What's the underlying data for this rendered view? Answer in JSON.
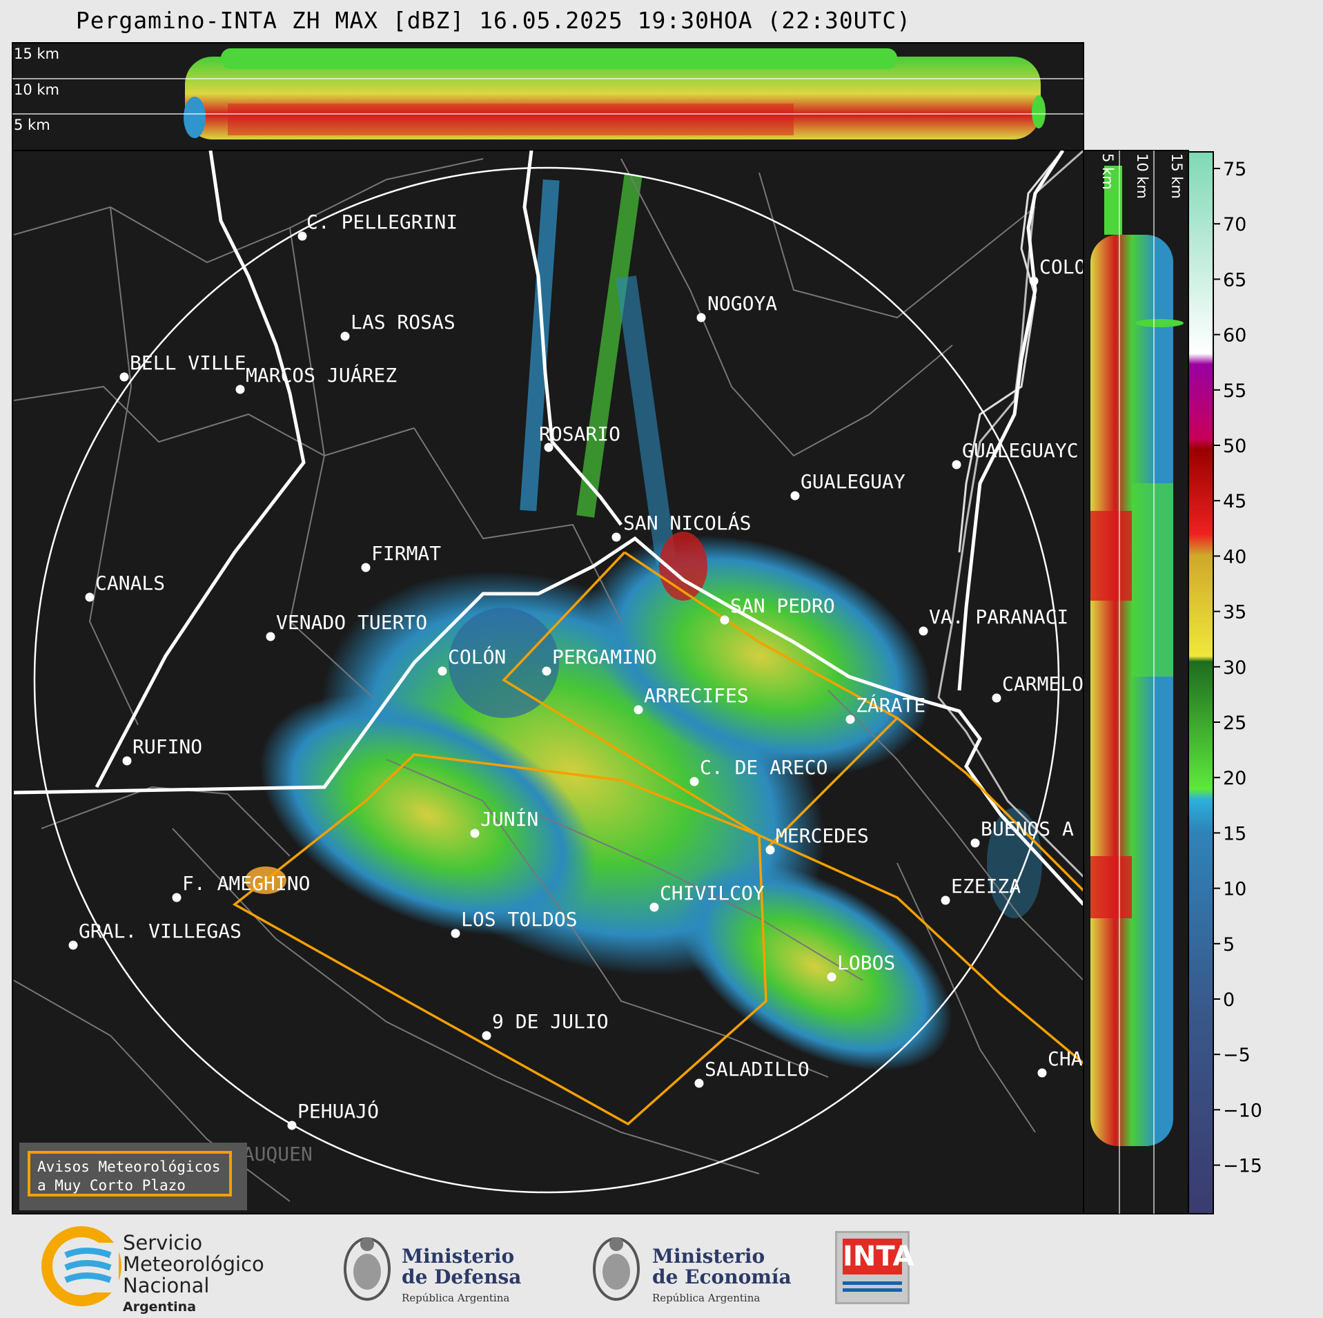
{
  "title": "Pergamino-INTA ZH MAX [dBZ] 16.05.2025 19:30HOA (22:30UTC)",
  "top_panel": {
    "altitude_labels": [
      "15 km",
      "10 km",
      "5 km"
    ]
  },
  "side_panel": {
    "altitude_labels": [
      "5 km",
      "10 km",
      "15 km"
    ]
  },
  "colorbar": {
    "ticks": [
      "75",
      "70",
      "65",
      "60",
      "55",
      "50",
      "45",
      "40",
      "35",
      "30",
      "25",
      "20",
      "15",
      "10",
      "5",
      "0",
      "−5",
      "−10",
      "−15"
    ],
    "unit": "dBZ",
    "range": [
      -20,
      77
    ]
  },
  "cities": [
    {
      "name": "C. PELLEGRINI"
    },
    {
      "name": "LAS ROSAS"
    },
    {
      "name": "NOGOYA"
    },
    {
      "name": "BELL VILLE"
    },
    {
      "name": "MARCOS JUÁREZ"
    },
    {
      "name": "COLO"
    },
    {
      "name": "ROSARIO"
    },
    {
      "name": "GUALEGUAYC"
    },
    {
      "name": "GUALEGUAY"
    },
    {
      "name": "SAN NICOLÁS"
    },
    {
      "name": "FIRMAT"
    },
    {
      "name": "CANALS"
    },
    {
      "name": "SAN PEDRO"
    },
    {
      "name": "VENADO TUERTO"
    },
    {
      "name": "VA. PARANACI"
    },
    {
      "name": "COLÓN"
    },
    {
      "name": "PERGAMINO"
    },
    {
      "name": "CARMELO"
    },
    {
      "name": "ARRECIFES"
    },
    {
      "name": "ZÁRATE"
    },
    {
      "name": "RUFINO"
    },
    {
      "name": "C. DE ARECO"
    },
    {
      "name": "JUNÍN"
    },
    {
      "name": "BUENOS A"
    },
    {
      "name": "MERCEDES"
    },
    {
      "name": "F. AMEGHINO"
    },
    {
      "name": "EZEIZA"
    },
    {
      "name": "CHIVILCOY"
    },
    {
      "name": "LOS TOLDOS"
    },
    {
      "name": "GRAL. VILLEGAS"
    },
    {
      "name": "LOBOS"
    },
    {
      "name": "9 DE JULIO"
    },
    {
      "name": "CHA"
    },
    {
      "name": "SALADILLO"
    },
    {
      "name": "PEHUAJÓ"
    },
    {
      "name": "TRENQUE LAUQUEN"
    }
  ],
  "legend": {
    "line1": "Avisos Meteorológicos",
    "line2": "a Muy Corto Plazo",
    "border_color": "#f5a000"
  },
  "logos": {
    "smn": {
      "line1": "Servicio",
      "line2": "Meteorológico",
      "line3": "Nacional",
      "line4": "Argentina"
    },
    "defensa": {
      "line1": "Ministerio",
      "line2": "de Defensa",
      "line3": "República Argentina"
    },
    "economia": {
      "line1": "Ministerio",
      "line2": "de Economía",
      "line3": "República Argentina"
    },
    "inta": {
      "label": "INTA"
    }
  }
}
